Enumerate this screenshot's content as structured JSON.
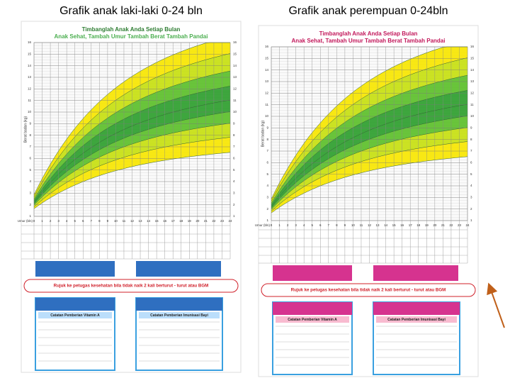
{
  "panels": [
    {
      "title": "Grafik anak laki-laki 0-24 bln",
      "header": [
        "Timbanglah Anak Anda Setiap Bulan",
        "Anak Sehat, Tambah Umur Tambah Berat Tambah Pandai"
      ],
      "y_label": "Berat badan (kg)",
      "month_label": "Umur (bln)",
      "referral": "Rujuk ke petugas kesehatan bila tidak naik 2 kali berturut - turut atau BGM",
      "boxes": [
        "Catatan Pemberian Vitamin A",
        "Catatan Pemberian Imunisasi Bayi"
      ]
    },
    {
      "title": "Grafik anak perempuan 0-24bln",
      "header": [
        "Timbanglah Anak Anda Setiap Bulan",
        "Anak Sehat, Tambah Umur Tambah Berat Tambah Pandai"
      ],
      "y_label": "Berat badan (kg)",
      "month_label": "Umur (bln)",
      "referral": "Rujuk ke petugas kesehatan bila tidak naik 2 kali berturut - turut atau BGM",
      "boxes": [
        "Catatan Pemberian Vitamin A",
        "Catatan Pemberian Imunisasi Bayi"
      ]
    }
  ],
  "months": [
    0,
    1,
    2,
    3,
    4,
    5,
    6,
    7,
    8,
    9,
    10,
    11,
    12,
    13,
    14,
    15,
    16,
    17,
    18,
    19,
    20,
    21,
    22,
    23,
    24
  ],
  "kg": [
    1,
    2,
    3,
    4,
    5,
    6,
    7,
    8,
    9,
    10,
    11,
    12,
    13,
    14,
    15,
    16
  ]
}
